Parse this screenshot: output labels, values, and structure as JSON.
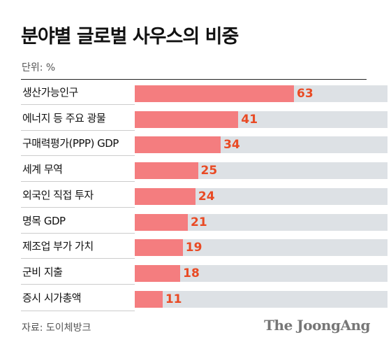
{
  "chart_data": {
    "type": "bar",
    "orientation": "horizontal",
    "title": "분야별 글로벌 사우스의 비중",
    "unit_label": "단위: %",
    "categories": [
      "생산가능인구",
      "에너지 등 주요 광물",
      "구매력평가(PPP) GDP",
      "세계 무역",
      "외국인 직접 투자",
      "명목 GDP",
      "제조업 부가 가치",
      "군비 지출",
      "증시 시가총액"
    ],
    "values": [
      63,
      41,
      34,
      25,
      24,
      21,
      19,
      18,
      11
    ],
    "xlim": [
      0,
      100
    ],
    "grid": false,
    "legend": "none",
    "source": "자료: 도이체방크",
    "colors": {
      "bar": "#f47d7f",
      "track": "#dde1e5",
      "value_text": "#e94a24"
    }
  },
  "branding": {
    "logo_text": "The JoongAng"
  }
}
